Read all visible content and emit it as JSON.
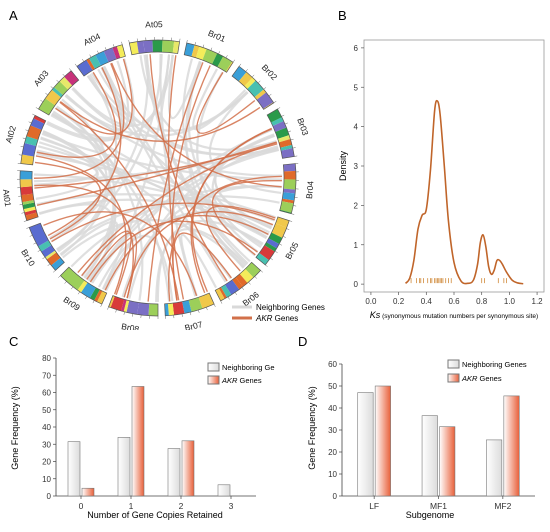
{
  "panel_letters": {
    "a": "A",
    "b": "B",
    "c": "C",
    "d": "D"
  },
  "colors": {
    "neighboring": "#d9d9d9",
    "akr": "#d2704a",
    "ks_line": "#c0652a",
    "bar_gray": "#dcdcdc",
    "bar_orange": "#e8603a"
  },
  "circos": {
    "chromosomes": [
      "Br01",
      "Br02",
      "Br03",
      "Br04",
      "Br05",
      "Br06",
      "Br07",
      "Br08",
      "Br09",
      "Br10",
      "At01",
      "At02",
      "At03",
      "At04",
      "At05"
    ],
    "legend": [
      {
        "label": "Neighboring Genes",
        "italic_prefix": ""
      },
      {
        "label": " Genes",
        "italic_prefix": "AKR"
      }
    ]
  },
  "chart_data": [
    {
      "type": "line",
      "panel": "B",
      "ylabel": "Density",
      "xlabel_italic": "Ks",
      "xlabel_rest": " (synonymous mutation numbers per synonymous site)",
      "xlim": [
        -0.05,
        1.25
      ],
      "ylim": [
        -0.2,
        6.2
      ],
      "xticks": [
        "0.0",
        "0.2",
        "0.4",
        "0.6",
        "0.8",
        "1.0",
        "1.2"
      ],
      "yticks": [
        "0",
        "1",
        "2",
        "3",
        "4",
        "5",
        "6"
      ],
      "x": [
        0.25,
        0.28,
        0.31,
        0.34,
        0.37,
        0.4,
        0.43,
        0.46,
        0.48,
        0.5,
        0.53,
        0.56,
        0.6,
        0.65,
        0.7,
        0.74,
        0.77,
        0.79,
        0.81,
        0.83,
        0.85,
        0.87,
        0.89,
        0.91,
        0.93,
        0.95,
        0.98,
        1.02,
        1.06,
        1.1
      ],
      "y": [
        0.02,
        0.15,
        0.6,
        1.4,
        1.75,
        1.9,
        2.9,
        4.4,
        4.65,
        4.3,
        3.0,
        1.6,
        0.55,
        0.08,
        0.02,
        0.1,
        0.5,
        1.05,
        1.25,
        0.95,
        0.45,
        0.25,
        0.35,
        0.6,
        0.6,
        0.5,
        0.3,
        0.1,
        0.03,
        0.01
      ],
      "rug": [
        0.29,
        0.33,
        0.35,
        0.36,
        0.38,
        0.41,
        0.43,
        0.44,
        0.46,
        0.47,
        0.48,
        0.49,
        0.5,
        0.51,
        0.52,
        0.54,
        0.56,
        0.58,
        0.8,
        0.82,
        0.92,
        0.96,
        0.98
      ]
    },
    {
      "type": "bar",
      "panel": "C",
      "ylabel": "Gene Frequency (%)",
      "xlabel": "Number of Gene Copies Retained",
      "categories": [
        "0",
        "1",
        "2",
        "3"
      ],
      "ylim": [
        0,
        80
      ],
      "yticks": [
        "0",
        "10",
        "20",
        "30",
        "40",
        "50",
        "60",
        "70",
        "80"
      ],
      "series": [
        {
          "name": "Neighboring Genes",
          "name_italic": "",
          "values": [
            31.5,
            34,
            27.5,
            6.5
          ]
        },
        {
          "name": " Genes",
          "name_italic": "AKR",
          "values": [
            4.5,
            63.5,
            32,
            0
          ]
        }
      ]
    },
    {
      "type": "bar",
      "panel": "D",
      "ylabel": "Gene Frequency (%)",
      "xlabel": "Subgenome",
      "categories": [
        "LF",
        "MF1",
        "MF2"
      ],
      "ylim": [
        0,
        60
      ],
      "yticks": [
        "0",
        "10",
        "20",
        "30",
        "40",
        "50",
        "60"
      ],
      "series": [
        {
          "name": "Neighboring Genes",
          "name_italic": "",
          "values": [
            47,
            36.5,
            25.5
          ]
        },
        {
          "name": " Genes",
          "name_italic": "AKR",
          "values": [
            50,
            31.5,
            45.5
          ]
        }
      ]
    }
  ]
}
